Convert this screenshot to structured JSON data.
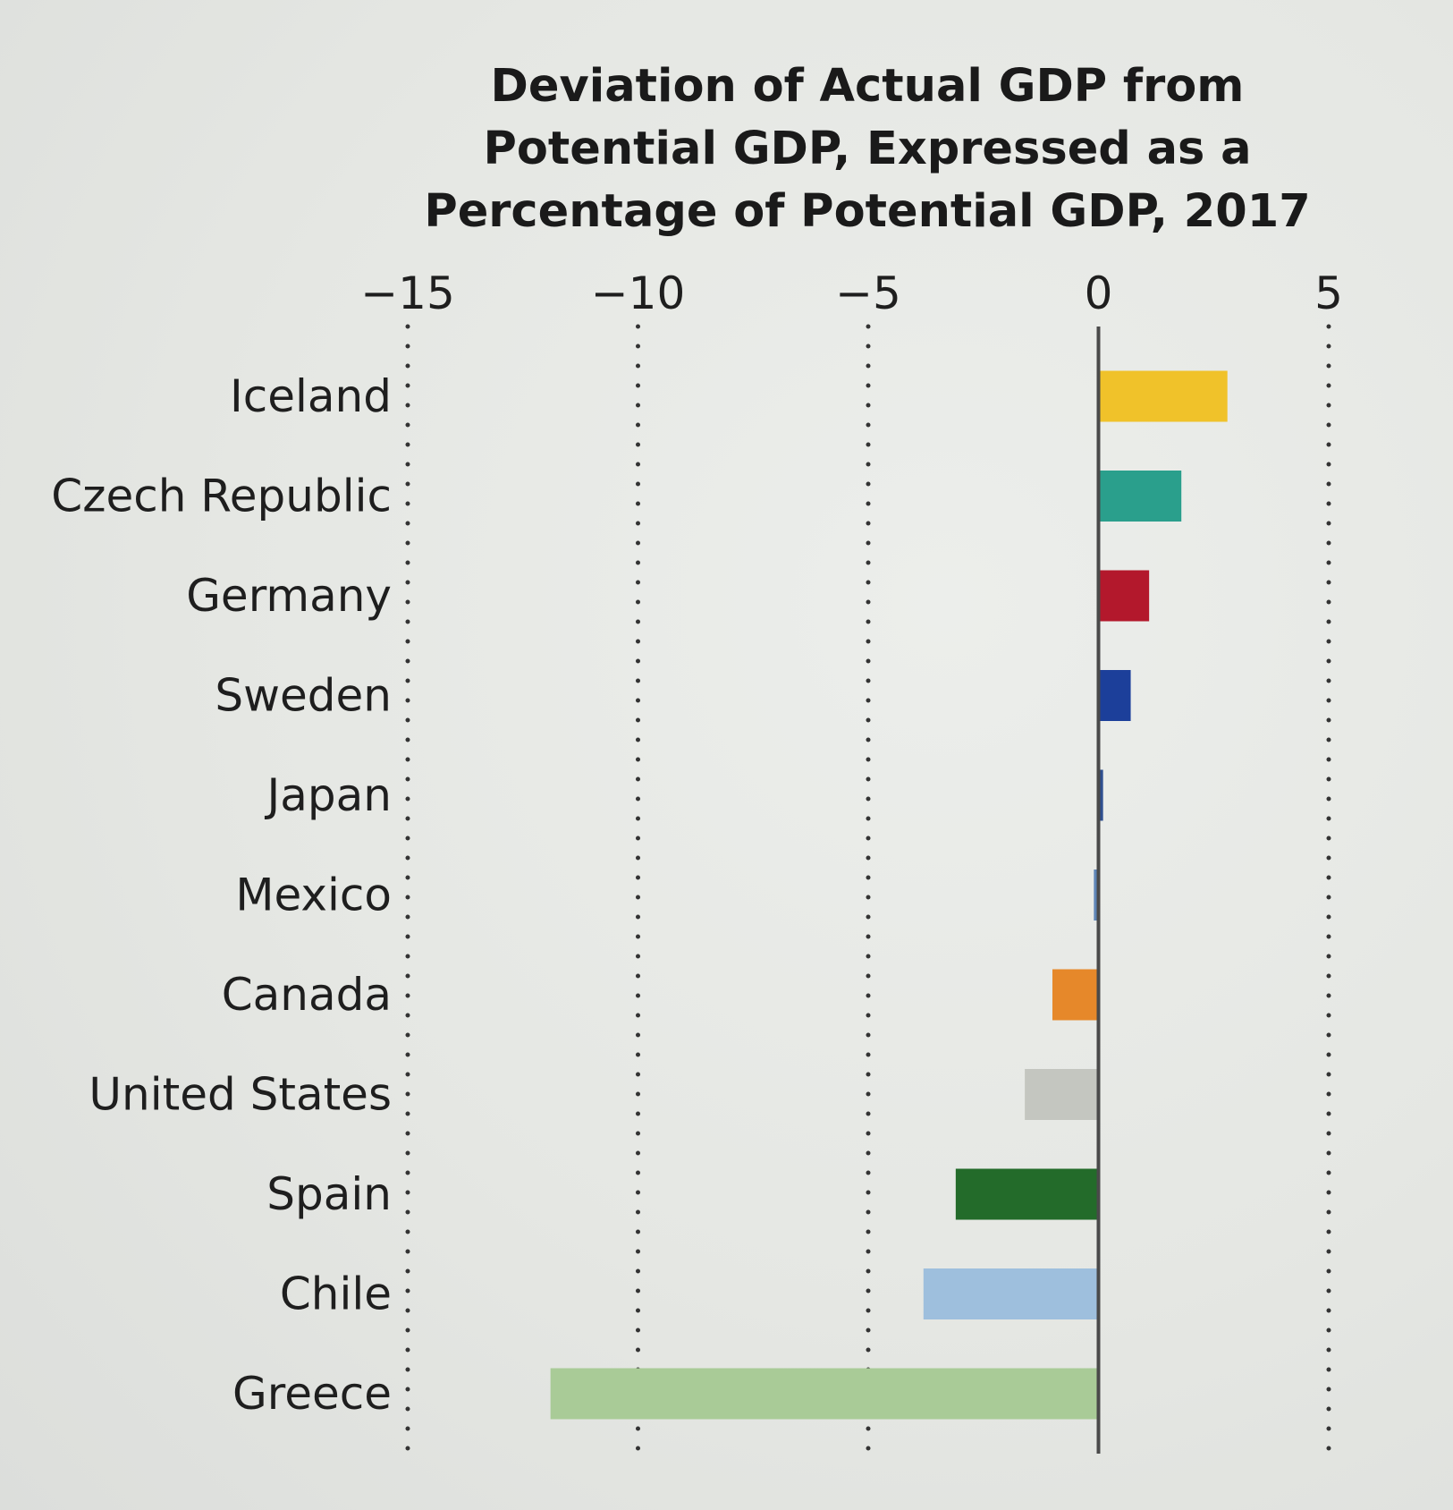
{
  "chart_data": {
    "type": "bar",
    "orientation": "horizontal",
    "title_lines": [
      "Deviation of Actual GDP from",
      "Potential GDP, Expressed as a",
      "Percentage of Potential GDP, 2017"
    ],
    "categories": [
      "Iceland",
      "Czech Republic",
      "Germany",
      "Sweden",
      "Japan",
      "Mexico",
      "Canada",
      "United States",
      "Spain",
      "Chile",
      "Greece"
    ],
    "values": [
      2.8,
      1.8,
      1.1,
      0.7,
      0.1,
      -0.1,
      -1.0,
      -1.6,
      -3.1,
      -3.8,
      -11.9
    ],
    "colors": [
      "#f0c22a",
      "#2a9f8c",
      "#b3182c",
      "#1c3f9a",
      "#2f4f8f",
      "#5f86b8",
      "#e6882a",
      "#c4c6c0",
      "#236b2a",
      "#9ebfdd",
      "#a9cb97"
    ],
    "xlim": [
      -15,
      5
    ],
    "xticks": [
      -15,
      -10,
      -5,
      0,
      5
    ],
    "xtick_labels": [
      "−15",
      "−10",
      "−5",
      "0",
      "5"
    ],
    "grid": "dotted vertical",
    "legend": "none"
  }
}
